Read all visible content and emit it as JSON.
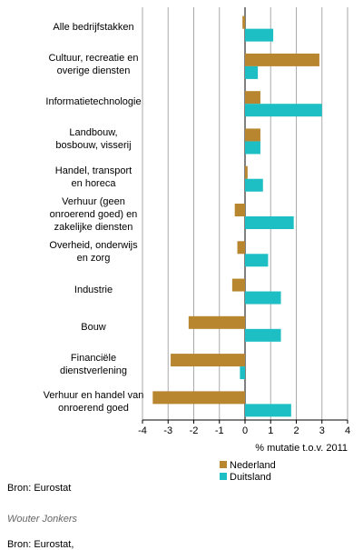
{
  "chart_data": {
    "type": "hbar",
    "categories": [
      "Alle bedrijfstakken",
      "Cultuur, recreatie en\noverige diensten",
      "Informatietechnologie",
      "Landbouw,\nbosbouw, visserij",
      "Handel, transport\nen horeca",
      "Verhuur (geen\nonroerend goed) en\nzakelijke diensten",
      "Overheid, onderwijs\nen zorg",
      "Industrie",
      "Bouw",
      "Financiële\ndienstverlening",
      "Verhuur en handel van\nonroerend goed"
    ],
    "series": [
      {
        "name": "Nederland",
        "color": "#b8862f",
        "values": [
          -0.1,
          2.9,
          0.6,
          0.6,
          0.1,
          -0.4,
          -0.3,
          -0.5,
          -2.2,
          -2.9,
          -3.6
        ]
      },
      {
        "name": "Duitsland",
        "color": "#1ebfc4",
        "values": [
          1.1,
          0.5,
          3.0,
          0.6,
          0.7,
          1.9,
          0.9,
          1.4,
          1.4,
          -0.2,
          1.8
        ]
      }
    ],
    "xlim": [
      -4,
      4
    ],
    "xticks": [
      -4,
      -3,
      -2,
      -1,
      0,
      1,
      2,
      3,
      4
    ],
    "grid": true,
    "xlabel": "% mutatie t.o.v. 2011",
    "source": "Bron: Eurostat"
  },
  "author": "Wouter Jonkers",
  "footer": "Bron: Eurostat,"
}
